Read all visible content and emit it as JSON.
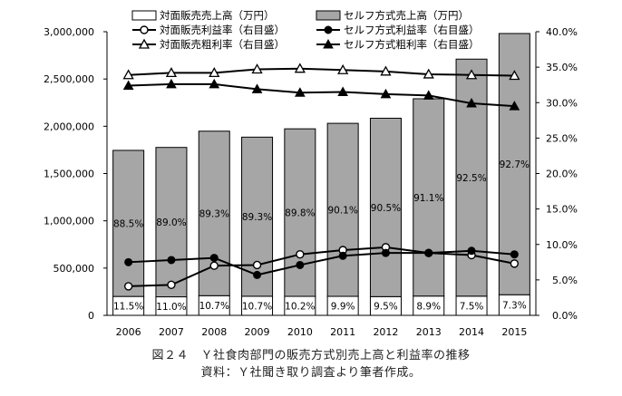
{
  "chart_data": {
    "type": "bar",
    "categories": [
      "2006",
      "2007",
      "2008",
      "2009",
      "2010",
      "2011",
      "2012",
      "2013",
      "2014",
      "2015"
    ],
    "series": [
      {
        "name": "対面販売売上高（万円）",
        "kind": "bar",
        "axis": "left",
        "color": "#ffffff",
        "values": [
          200000,
          196000,
          208000,
          202000,
          201000,
          201000,
          198000,
          204000,
          203000,
          218000
        ]
      },
      {
        "name": "セルフ方式売上高（万円）",
        "kind": "bar",
        "axis": "left",
        "color": "#a6a6a6",
        "values": [
          1545000,
          1580000,
          1740000,
          1683000,
          1772000,
          1830000,
          1887000,
          2087000,
          2507000,
          2763000
        ]
      },
      {
        "name": "対面販売利益率（右目盛）",
        "kind": "line",
        "axis": "right",
        "marker": "circle-open",
        "values": [
          4.1,
          4.3,
          7.0,
          7.1,
          8.6,
          9.2,
          9.6,
          8.8,
          8.5,
          7.3
        ]
      },
      {
        "name": "セルフ方式利益率（右目盛）",
        "kind": "line",
        "axis": "right",
        "marker": "circle-filled",
        "values": [
          7.5,
          7.8,
          8.1,
          5.7,
          7.1,
          8.4,
          8.8,
          8.8,
          9.1,
          8.6
        ]
      },
      {
        "name": "対面販売粗利率（右目盛）",
        "kind": "line",
        "axis": "right",
        "marker": "triangle-open",
        "values": [
          33.9,
          34.2,
          34.2,
          34.7,
          34.8,
          34.6,
          34.4,
          34.0,
          33.9,
          33.8
        ]
      },
      {
        "name": "セルフ方式粗利率（右目盛）",
        "kind": "line",
        "axis": "right",
        "marker": "triangle-filled",
        "values": [
          32.4,
          32.6,
          32.6,
          31.9,
          31.4,
          31.5,
          31.2,
          31.0,
          29.9,
          29.5
        ]
      }
    ],
    "share_labels": {
      "self": [
        "88.5%",
        "89.0%",
        "89.3%",
        "89.3%",
        "89.8%",
        "90.1%",
        "90.5%",
        "91.1%",
        "92.5%",
        "92.7%"
      ],
      "counter": [
        "11.5%",
        "11.0%",
        "10.7%",
        "10.7%",
        "10.2%",
        "9.9%",
        "9.5%",
        "8.9%",
        "7.5%",
        "7.3%"
      ]
    },
    "y_left": {
      "min": 0,
      "max": 3000000,
      "step": 500000,
      "ticks": [
        "0",
        "500,000",
        "1,000,000",
        "1,500,000",
        "2,000,000",
        "2,500,000",
        "3,000,000"
      ]
    },
    "y_right": {
      "min": 0,
      "max": 40,
      "step": 5,
      "ticks": [
        "0.0%",
        "5.0%",
        "10.0%",
        "15.0%",
        "20.0%",
        "25.0%",
        "30.0%",
        "35.0%",
        "40.0%"
      ]
    },
    "grid": false,
    "legend_position": "top"
  },
  "caption": {
    "line1": "図２４　Ｙ社食肉部門の販売方式別売上高と利益率の推移",
    "line2": "資料：Ｙ社聞き取り調査より筆者作成。"
  }
}
